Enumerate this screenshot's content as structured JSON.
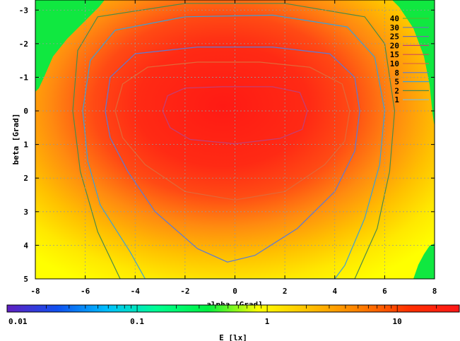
{
  "chart_data": {
    "type": "heatmap",
    "title": "",
    "xlabel": "alpha [Grad]",
    "ylabel": "beta [Grad]",
    "xlim": [
      -8,
      8
    ],
    "ylim": [
      -3.3,
      5
    ],
    "y_reversed": true,
    "x_ticks": [
      "-8",
      "-6",
      "-4",
      "-2",
      "0",
      "2",
      "4",
      "6",
      "8"
    ],
    "x_tick_values": [
      -8,
      -6,
      -4,
      -2,
      0,
      2,
      4,
      6,
      8
    ],
    "y_ticks": [
      "-3",
      "-2",
      "-1",
      "0",
      "1",
      "2",
      "3",
      "4",
      "5"
    ],
    "y_tick_values": [
      -3,
      -2,
      -1,
      0,
      1,
      2,
      3,
      4,
      5
    ],
    "grid": true,
    "contour_levels": [
      "40",
      "30",
      "25",
      "20",
      "15",
      "10",
      "8",
      "5",
      "2",
      "1"
    ],
    "contour_colors": [
      "#4dbf2f",
      "#6a78b8",
      "#7a6aa8",
      "#c0407a",
      "#d04a5a",
      "#e06a3a",
      "#5a7ad8",
      "#3aa0d8",
      "#4a8a4a",
      "#7ac0e0"
    ],
    "colorbar": {
      "label": "E [lx]",
      "scale": "log",
      "range": [
        0.01,
        30
      ],
      "ticks": [
        "0.01",
        "0.1",
        "1",
        "10"
      ],
      "tick_values": [
        0.01,
        0.1,
        1,
        10
      ],
      "colors": [
        "#6020c0",
        "#1050f0",
        "#00c0ff",
        "#00ff90",
        "#00f040",
        "#ffff00",
        "#ffc000",
        "#ff8000",
        "#ff3000",
        "#ff1818"
      ]
    },
    "contours": [
      {
        "level": "20",
        "points": [
          [
            -2.9,
            0.0
          ],
          [
            -2.7,
            -0.45
          ],
          [
            -2.0,
            -0.68
          ],
          [
            -0.5,
            -0.72
          ],
          [
            1.5,
            -0.72
          ],
          [
            2.6,
            -0.55
          ],
          [
            2.9,
            0.0
          ],
          [
            2.7,
            0.55
          ],
          [
            1.8,
            0.82
          ],
          [
            0.0,
            0.98
          ],
          [
            -1.8,
            0.85
          ],
          [
            -2.6,
            0.5
          ]
        ]
      },
      {
        "level": "10",
        "points": [
          [
            -4.8,
            0.0
          ],
          [
            -4.5,
            -0.8
          ],
          [
            -3.5,
            -1.3
          ],
          [
            -1.5,
            -1.45
          ],
          [
            1.0,
            -1.45
          ],
          [
            3.0,
            -1.3
          ],
          [
            4.3,
            -0.8
          ],
          [
            4.6,
            0.0
          ],
          [
            4.4,
            0.9
          ],
          [
            3.6,
            1.6
          ],
          [
            2.0,
            2.4
          ],
          [
            0.0,
            2.65
          ],
          [
            -2.0,
            2.4
          ],
          [
            -3.6,
            1.6
          ],
          [
            -4.5,
            0.8
          ]
        ]
      },
      {
        "level": "8",
        "points": [
          [
            -5.2,
            0.0
          ],
          [
            -5.0,
            -1.0
          ],
          [
            -4.0,
            -1.7
          ],
          [
            -1.5,
            -1.9
          ],
          [
            1.5,
            -1.9
          ],
          [
            3.8,
            -1.7
          ],
          [
            4.8,
            -1.0
          ],
          [
            5.0,
            0.0
          ],
          [
            4.8,
            1.2
          ],
          [
            4.0,
            2.4
          ],
          [
            2.5,
            3.5
          ],
          [
            0.8,
            4.3
          ],
          [
            -0.3,
            4.5
          ],
          [
            -1.5,
            4.1
          ],
          [
            -3.2,
            3.0
          ],
          [
            -4.3,
            1.8
          ],
          [
            -5.0,
            0.8
          ]
        ]
      },
      {
        "level": "5",
        "points": [
          [
            -6.1,
            0.0
          ],
          [
            -5.8,
            -1.5
          ],
          [
            -4.8,
            -2.4
          ],
          [
            -2.0,
            -2.8
          ],
          [
            1.5,
            -2.85
          ],
          [
            4.5,
            -2.5
          ],
          [
            5.6,
            -1.6
          ],
          [
            6.0,
            0.0
          ],
          [
            5.8,
            1.6
          ],
          [
            5.2,
            3.2
          ],
          [
            4.4,
            4.6
          ],
          [
            4.0,
            5.0
          ],
          [
            -3.6,
            5.0
          ],
          [
            -4.2,
            4.2
          ],
          [
            -5.4,
            2.8
          ],
          [
            -5.9,
            1.5
          ]
        ]
      },
      {
        "level": "2",
        "points": [
          [
            -6.5,
            0.0
          ],
          [
            -6.3,
            -1.8
          ],
          [
            -5.5,
            -2.8
          ],
          [
            -2.0,
            -3.2
          ],
          [
            2.0,
            -3.2
          ],
          [
            5.2,
            -2.8
          ],
          [
            6.0,
            -2.0
          ],
          [
            6.4,
            0.0
          ],
          [
            6.2,
            1.8
          ],
          [
            5.7,
            3.5
          ],
          [
            4.8,
            5.0
          ],
          [
            -4.6,
            5.0
          ],
          [
            -5.5,
            3.6
          ],
          [
            -6.2,
            1.8
          ]
        ]
      }
    ]
  }
}
